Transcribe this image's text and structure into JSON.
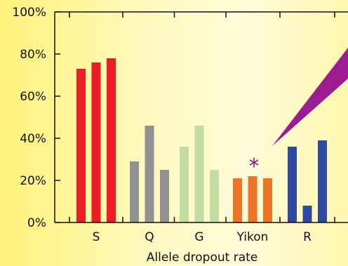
{
  "chart_data": {
    "type": "bar",
    "xlabel": "Allele dropout rate",
    "ylim": [
      0,
      100
    ],
    "yticks": [
      "0%",
      "20%",
      "40%",
      "60%",
      "80%",
      "100%"
    ],
    "ytick_values": [
      0,
      20,
      40,
      60,
      80,
      100
    ],
    "groups": [
      {
        "label": "S",
        "color": "#ee1c25",
        "values": [
          73,
          76,
          78
        ]
      },
      {
        "label": "Q",
        "color": "#929292",
        "values": [
          29,
          46,
          25
        ]
      },
      {
        "label": "G",
        "color": "#c3dca3",
        "values": [
          36,
          46,
          25
        ]
      },
      {
        "label": "Yikon",
        "color": "#ed7325",
        "values": [
          21,
          22,
          21
        ]
      },
      {
        "label": "R",
        "color": "#2d4aa0",
        "values": [
          36,
          8,
          39
        ]
      }
    ],
    "annotation_marker": {
      "group": "Yikon",
      "value": 28.5,
      "color": "#8e1f8e"
    },
    "callout_color": "#9b1d8f",
    "grid": false
  }
}
